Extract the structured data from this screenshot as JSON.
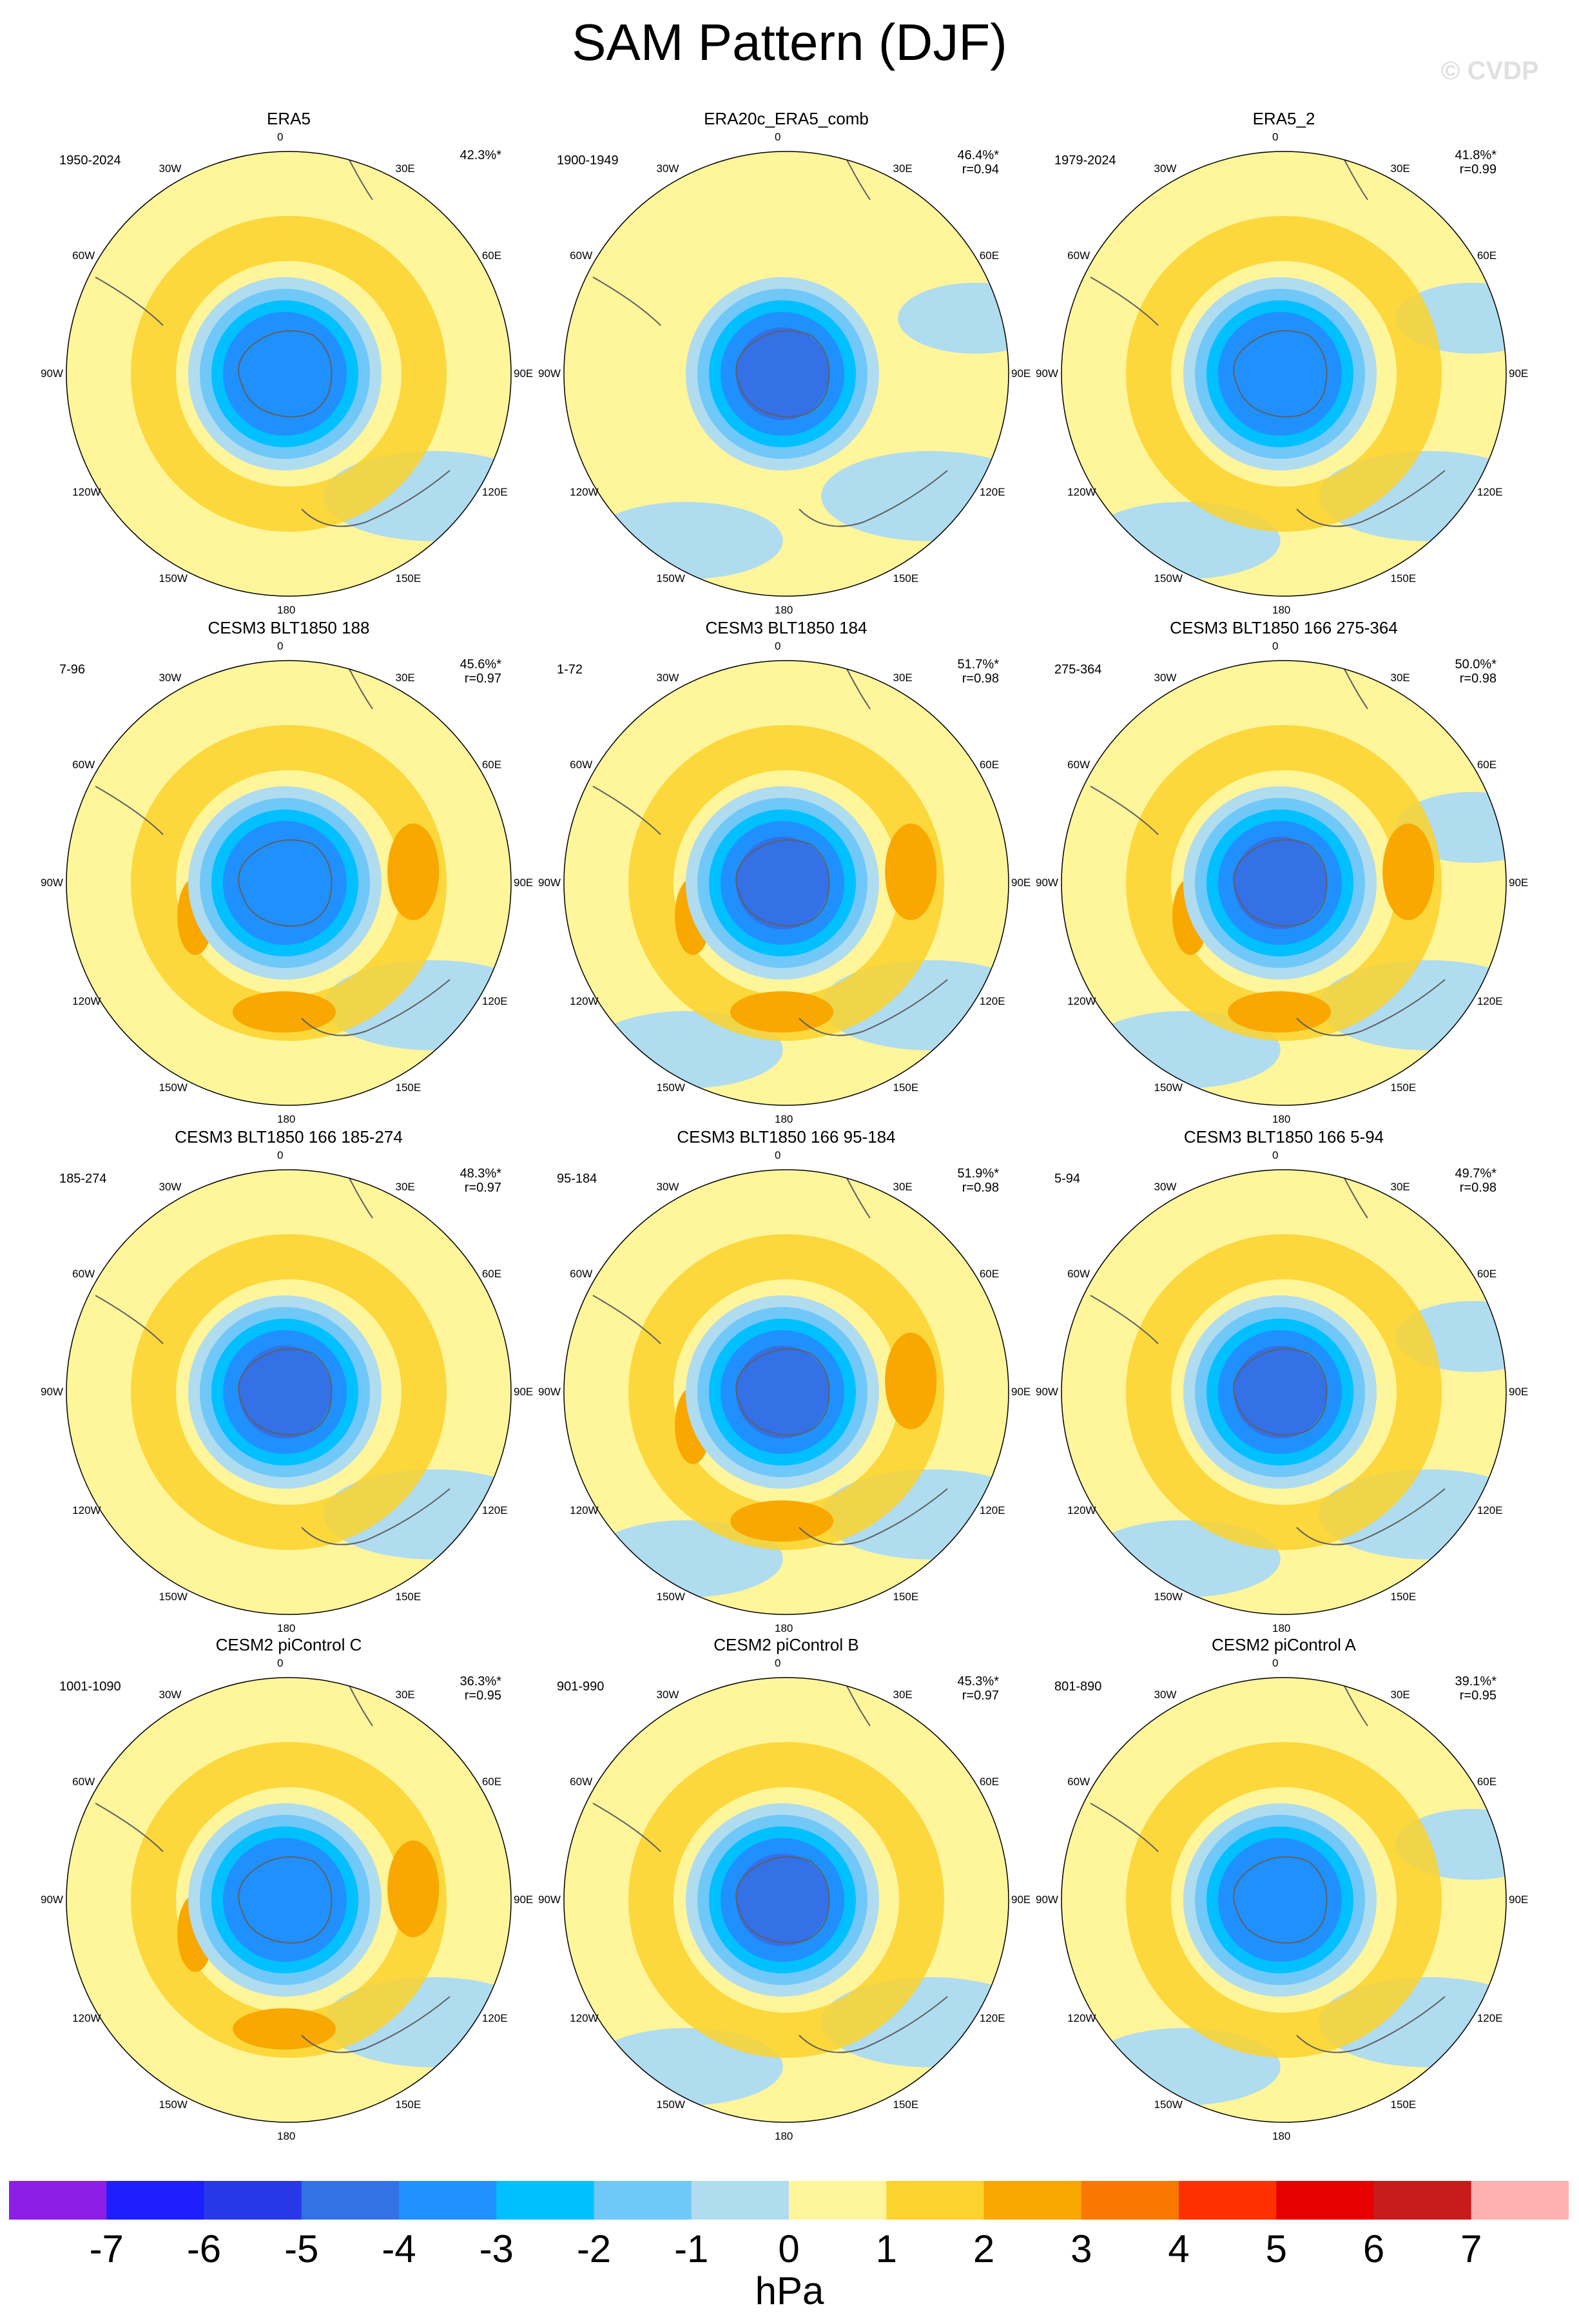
{
  "title": "SAM Pattern (DJF)",
  "watermark": "© CVDP",
  "colors": {
    "levels": [
      "#8c1ee8",
      "#1e1eff",
      "#2838e8",
      "#3470e6",
      "#2090ff",
      "#00c0ff",
      "#70c8f8",
      "#b0dcf0",
      "#fff59b",
      "#fcd22c",
      "#f8a800",
      "#f87800",
      "#ff3000",
      "#e80000",
      "#c81c1c",
      "#ffb0b0"
    ],
    "ocean_neg": "#b0dcf0",
    "coast": "#606060"
  },
  "colorbar": {
    "ticks": [
      "-7",
      "-6",
      "-5",
      "-4",
      "-3",
      "-2",
      "-1",
      "0",
      "1",
      "2",
      "3",
      "4",
      "5",
      "6",
      "7"
    ],
    "units": "hPa"
  },
  "axis_labels": {
    "top": "0",
    "ne1": "30E",
    "ne2": "60E",
    "e": "90E",
    "se1": "120E",
    "se2": "150E",
    "bottom": "180",
    "sw2": "150W",
    "sw1": "120W",
    "w": "90W",
    "nw2": "60W",
    "nw1": "30W"
  },
  "chart_data": [
    {
      "type": "heatmap",
      "title": "ERA5",
      "years": "1950-2024",
      "pct": "42.3%*",
      "r": "",
      "center": -4.0,
      "max_pos": 1.5
    },
    {
      "type": "heatmap",
      "title": "ERA20c_ERA5_comb",
      "years": "1900-1949",
      "pct": "46.4%*",
      "r": "r=0.94",
      "center": -4.5,
      "max_pos": 0.8
    },
    {
      "type": "heatmap",
      "title": "ERA5_2",
      "years": "1979-2024",
      "pct": "41.8%*",
      "r": "r=0.99",
      "center": -3.8,
      "max_pos": 1.6
    },
    {
      "type": "heatmap",
      "title": "CESM3 BLT1850 188",
      "years": "7-96",
      "pct": "45.6%*",
      "r": "r=0.97",
      "center": -4.3,
      "max_pos": 2.6
    },
    {
      "type": "heatmap",
      "title": "CESM3 BLT1850 184",
      "years": "1-72",
      "pct": "51.7%*",
      "r": "r=0.98",
      "center": -4.8,
      "max_pos": 2.5
    },
    {
      "type": "heatmap",
      "title": "CESM3 BLT1850 166 275-364",
      "years": "275-364",
      "pct": "50.0%*",
      "r": "r=0.98",
      "center": -4.8,
      "max_pos": 2.3
    },
    {
      "type": "heatmap",
      "title": "CESM3 BLT1850 166 185-274",
      "years": "185-274",
      "pct": "48.3%*",
      "r": "r=0.97",
      "center": -4.6,
      "max_pos": 1.8
    },
    {
      "type": "heatmap",
      "title": "CESM3 BLT1850 166 95-184",
      "years": "95-184",
      "pct": "51.9%*",
      "r": "r=0.98",
      "center": -4.7,
      "max_pos": 2.3
    },
    {
      "type": "heatmap",
      "title": "CESM3 BLT1850 166 5-94",
      "years": "5-94",
      "pct": "49.7%*",
      "r": "r=0.98",
      "center": -4.8,
      "max_pos": 1.8
    },
    {
      "type": "heatmap",
      "title": "CESM2 piControl C",
      "years": "1001-1090",
      "pct": "36.3%*",
      "r": "r=0.95",
      "center": -4.2,
      "max_pos": 2.1
    },
    {
      "type": "heatmap",
      "title": "CESM2 piControl B",
      "years": "901-990",
      "pct": "45.3%*",
      "r": "r=0.97",
      "center": -4.7,
      "max_pos": 1.7
    },
    {
      "type": "heatmap",
      "title": "CESM2 piControl A",
      "years": "801-890",
      "pct": "39.1%*",
      "r": "r=0.95",
      "center": -4.0,
      "max_pos": 1.6
    }
  ]
}
